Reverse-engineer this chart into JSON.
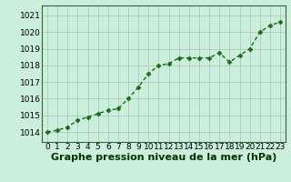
{
  "x": [
    0,
    1,
    2,
    3,
    4,
    5,
    6,
    7,
    8,
    9,
    10,
    11,
    12,
    13,
    14,
    15,
    16,
    17,
    18,
    19,
    20,
    21,
    22,
    23
  ],
  "y": [
    1014.0,
    1014.1,
    1014.3,
    1014.7,
    1014.9,
    1015.1,
    1015.3,
    1015.4,
    1016.0,
    1016.7,
    1017.5,
    1018.0,
    1018.1,
    1018.45,
    1018.45,
    1018.45,
    1018.45,
    1018.75,
    1018.2,
    1018.6,
    1019.0,
    1020.0,
    1020.4,
    1020.6
  ],
  "line_color": "#1a6b1a",
  "marker": "D",
  "marker_size": 2.5,
  "background_color": "#cceedd",
  "grid_color": "#aaccbb",
  "ylabel_ticks": [
    1014,
    1015,
    1016,
    1017,
    1018,
    1019,
    1020,
    1021
  ],
  "ylim": [
    1013.4,
    1021.6
  ],
  "xlim": [
    -0.5,
    23.5
  ],
  "xlabel": "Graphe pression niveau de la mer (hPa)",
  "xlabel_fontsize": 8,
  "tick_fontsize": 6.5,
  "title_color": "#003300",
  "line_width": 1.0,
  "marker_color": "#1a6b1a",
  "spine_color": "#336633"
}
